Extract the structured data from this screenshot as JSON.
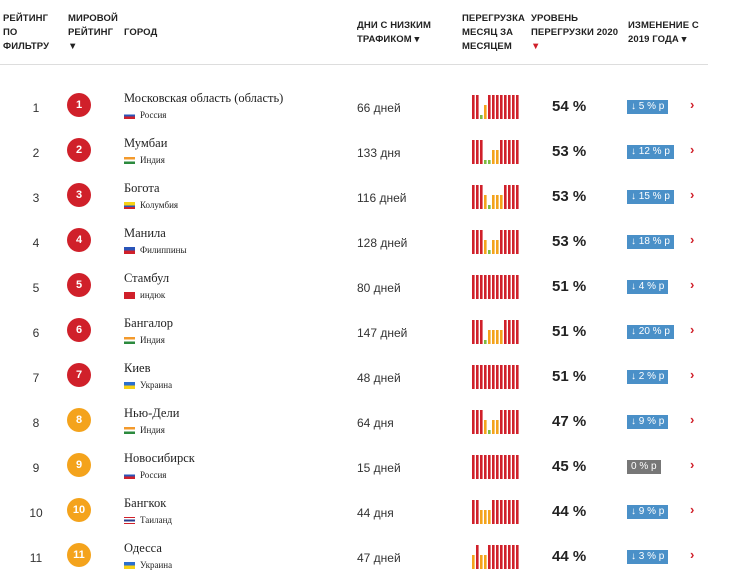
{
  "headers": {
    "filter_rank": "РЕЙТИНГ ПО ФИЛЬТРУ",
    "world_rank": "МИРОВОЙ РЕЙТИНГ",
    "world_rank_arrow": "▼",
    "city": "ГОРОД",
    "low_traffic_days": "ДНИ С НИЗКИМ ТРАФИКОМ ▾",
    "monthly_congestion": "ПЕРЕГРУЗКА МЕСЯЦ ЗА МЕСЯЦЕМ",
    "congestion_level": "УРОВЕНЬ ПЕРЕГРУЗКИ 2020",
    "congestion_level_arrow": "▼",
    "change": "ИЗМЕНЕНИЕ С 2019 ГОДА ▾"
  },
  "colors": {
    "red": "#d0202a",
    "orange": "#f4a31c",
    "green": "#7dbb42",
    "blue": "#4a90c8",
    "badge": "#4a90c8",
    "neutral": "#777777"
  },
  "rows": [
    {
      "rank": "1",
      "world_rank": "1",
      "circle": "red",
      "city": "Московская область (область)",
      "country": "Россия",
      "flag": "ru",
      "days": "66 дней",
      "pct": "54 %",
      "change": "↓ 5 % р",
      "badge": "down",
      "bars": [
        3,
        3,
        1,
        2,
        3,
        3,
        3,
        3,
        3,
        3,
        3,
        3
      ]
    },
    {
      "rank": "2",
      "world_rank": "2",
      "circle": "red",
      "city": "Мумбаи",
      "country": "Индия",
      "flag": "in",
      "days": "133 дня",
      "pct": "53 %",
      "change": "↓ 12 % р",
      "badge": "down",
      "bars": [
        3,
        3,
        3,
        1,
        1,
        2,
        2,
        3,
        3,
        3,
        3,
        3
      ]
    },
    {
      "rank": "3",
      "world_rank": "3",
      "circle": "red",
      "city": "Богота",
      "country": "Колумбия",
      "flag": "co",
      "days": "116 дней",
      "pct": "53 %",
      "change": "↓ 15 % р",
      "badge": "down",
      "bars": [
        3,
        3,
        3,
        2,
        1,
        2,
        2,
        2,
        3,
        3,
        3,
        3
      ]
    },
    {
      "rank": "4",
      "world_rank": "4",
      "circle": "red",
      "city": "Манила",
      "country": "Филиппины",
      "flag": "ph",
      "days": "128 дней",
      "pct": "53 %",
      "change": "↓ 18 % р",
      "badge": "down",
      "bars": [
        3,
        3,
        3,
        2,
        1,
        2,
        2,
        3,
        3,
        3,
        3,
        3
      ]
    },
    {
      "rank": "5",
      "world_rank": "5",
      "circle": "red",
      "city": "Стамбул",
      "country": "индюк",
      "flag": "tr",
      "days": "80 дней",
      "pct": "51 %",
      "change": "↓ 4 % р",
      "badge": "down",
      "bars": [
        3,
        3,
        3,
        3,
        3,
        3,
        3,
        3,
        3,
        3,
        3,
        3
      ]
    },
    {
      "rank": "6",
      "world_rank": "6",
      "circle": "red",
      "city": "Бангалор",
      "country": "Индия",
      "flag": "in",
      "days": "147 дней",
      "pct": "51 %",
      "change": "↓ 20 % р",
      "badge": "down",
      "bars": [
        3,
        3,
        3,
        1,
        2,
        2,
        2,
        2,
        3,
        3,
        3,
        3
      ]
    },
    {
      "rank": "7",
      "world_rank": "7",
      "circle": "red",
      "city": "Киев",
      "country": "Украина",
      "flag": "ua",
      "days": "48 дней",
      "pct": "51 %",
      "change": "↓ 2 % р",
      "badge": "down",
      "bars": [
        3,
        3,
        3,
        3,
        3,
        3,
        3,
        3,
        3,
        3,
        3,
        3
      ]
    },
    {
      "rank": "8",
      "world_rank": "8",
      "circle": "orange",
      "city": "Нью-Дели",
      "country": "Индия",
      "flag": "in",
      "days": "64 дня",
      "pct": "47 %",
      "change": "↓ 9 % р",
      "badge": "down",
      "bars": [
        3,
        3,
        3,
        2,
        1,
        2,
        2,
        3,
        3,
        3,
        3,
        3
      ]
    },
    {
      "rank": "9",
      "world_rank": "9",
      "circle": "orange",
      "city": "Новосибирск",
      "country": "Россия",
      "flag": "ru",
      "days": "15 дней",
      "pct": "45 %",
      "change": "0 % р",
      "badge": "neutral",
      "bars": [
        3,
        3,
        3,
        3,
        3,
        3,
        3,
        3,
        3,
        3,
        3,
        3
      ]
    },
    {
      "rank": "10",
      "world_rank": "10",
      "circle": "orange",
      "city": "Бангкок",
      "country": "Таиланд",
      "flag": "th",
      "days": "44 дня",
      "pct": "44 %",
      "change": "↓ 9 % р",
      "badge": "down",
      "bars": [
        3,
        3,
        2,
        2,
        2,
        3,
        3,
        3,
        3,
        3,
        3,
        3
      ]
    },
    {
      "rank": "11",
      "world_rank": "11",
      "circle": "orange",
      "city": "Одесса",
      "country": "Украина",
      "flag": "ua",
      "days": "47 дней",
      "pct": "44 %",
      "change": "↓ 3 % р",
      "badge": "down",
      "bars": [
        2,
        3,
        2,
        2,
        3,
        3,
        3,
        3,
        3,
        3,
        3,
        3
      ]
    }
  ]
}
